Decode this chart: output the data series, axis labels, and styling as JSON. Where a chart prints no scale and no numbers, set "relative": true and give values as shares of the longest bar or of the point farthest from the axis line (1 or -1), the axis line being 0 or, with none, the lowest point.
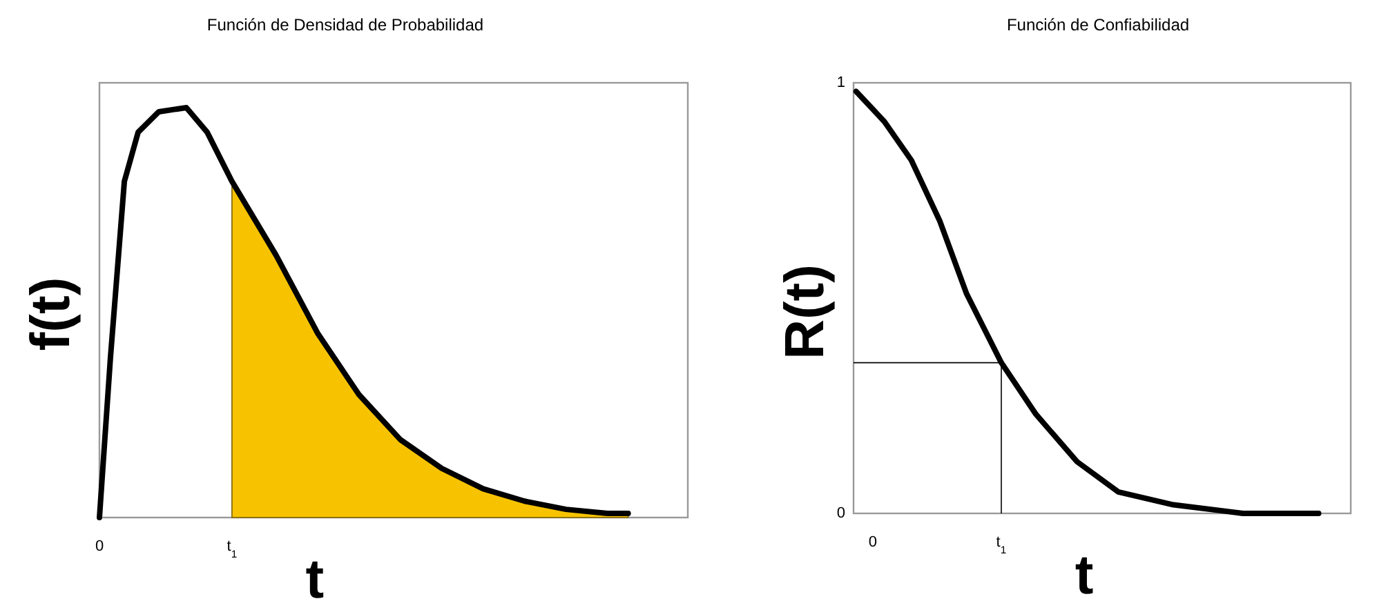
{
  "chart_data": [
    {
      "type": "line",
      "title": "Función de Densidad de Probabilidad",
      "xlabel": "t",
      "ylabel": "f(t)",
      "relative": true,
      "tick_labels": "x",
      "xlim": [
        0,
        4.44
      ],
      "xticks": [
        0,
        {
          "value": 1,
          "label": "t$_{1}$"
        }
      ],
      "series": [
        {
          "type": "area",
          "color": "#f7c300",
          "x": [
            1,
            1.333,
            1.646,
            1.958,
            2.271,
            2.583,
            2.896,
            3.208,
            3.521,
            3.833,
            3.99
          ],
          "values": [
            0.82,
            0.64,
            0.45,
            0.3,
            0.19,
            0.12,
            0.07,
            0.04,
            0.02,
            0.01,
            0.01
          ]
        },
        {
          "color": "#000000",
          "x": [
            0,
            0.083,
            0.188,
            0.292,
            0.448,
            0.656,
            0.813,
            1,
            1.333,
            1.646,
            1.958,
            2.271,
            2.583,
            2.896,
            3.208,
            3.521,
            3.833,
            3.99
          ],
          "values": [
            0,
            0.39,
            0.82,
            0.94,
            0.99,
            1,
            0.94,
            0.82,
            0.64,
            0.45,
            0.3,
            0.19,
            0.12,
            0.07,
            0.04,
            0.02,
            0.01,
            0.01
          ]
        }
      ]
    },
    {
      "type": "line",
      "title": "Función de Confiabilidad",
      "xlabel": "t",
      "ylabel": "R(t)",
      "xlim": [
        -0.15,
        3.72
      ],
      "ylim": [
        0,
        1
      ],
      "yticks": [
        0,
        1
      ],
      "xticks": [
        0,
        {
          "value": 1,
          "label": "t$_{1}$"
        }
      ],
      "ref_lines": [
        {
          "axis": "x",
          "value": 1,
          "color": "#000000"
        },
        {
          "axis": "y",
          "value": 0.35,
          "color": "#000000"
        }
      ],
      "series": [
        {
          "color": "#000000",
          "x": [
            -0.13,
            0.09,
            0.3,
            0.52,
            0.73,
            1,
            1.27,
            1.59,
            1.91,
            2.34,
            2.88,
            3.47
          ],
          "values": [
            0.98,
            0.91,
            0.82,
            0.68,
            0.51,
            0.35,
            0.23,
            0.12,
            0.05,
            0.02,
            0,
            0
          ]
        }
      ]
    }
  ]
}
